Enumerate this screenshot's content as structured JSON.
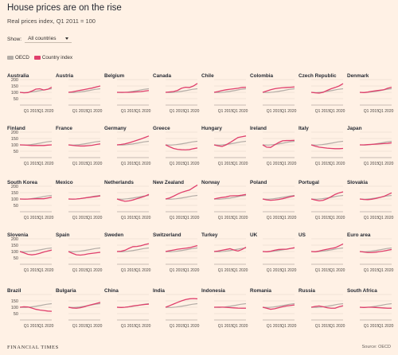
{
  "header": {
    "title": "House prices are on the rise",
    "subtitle": "Real prices index, Q1 2011 = 100"
  },
  "controls": {
    "show_label": "Show:",
    "select_value": "All countries"
  },
  "legend": {
    "oecd_label": "OECD",
    "country_label": "Country index"
  },
  "footer": {
    "brand": "FINANCIAL TIMES",
    "source": "Source: OECD"
  },
  "colors": {
    "background": "#fff1e5",
    "oecd": "#b3aca6",
    "country": "#e03f6c",
    "grid": "#e3d5c8"
  },
  "chart_data": {
    "type": "line",
    "ylim": [
      0,
      200
    ],
    "yticks": [
      50,
      100,
      150,
      200
    ],
    "yticks_row": [
      50,
      100,
      150
    ],
    "xtick_labels": [
      "Q1 2015",
      "Q1 2020"
    ],
    "x_range": [
      "Q1 2011",
      "Q4 2021"
    ],
    "oecd": {
      "name": "OECD",
      "x": [
        "Q1 2011",
        "Q1 2013",
        "Q1 2015",
        "Q1 2017",
        "Q1 2019",
        "Q1 2021",
        "Q4 2021"
      ],
      "values": [
        100,
        98,
        102,
        108,
        115,
        123,
        128
      ]
    },
    "panels": [
      {
        "name": "Australia",
        "values": [
          100,
          96,
          98,
          110,
          125,
          128,
          118,
          124,
          140
        ]
      },
      {
        "name": "Austria",
        "values": [
          100,
          104,
          110,
          116,
          122,
          128,
          134,
          142,
          150
        ]
      },
      {
        "name": "Belgium",
        "values": [
          100,
          100,
          100,
          100,
          102,
          104,
          106,
          110,
          114
        ]
      },
      {
        "name": "Canada",
        "values": [
          100,
          103,
          106,
          115,
          132,
          140,
          138,
          150,
          170
        ]
      },
      {
        "name": "Chile",
        "values": [
          100,
          106,
          114,
          120,
          124,
          128,
          132,
          138,
          140
        ]
      },
      {
        "name": "Colombia",
        "values": [
          100,
          110,
          120,
          128,
          133,
          136,
          138,
          140,
          142
        ]
      },
      {
        "name": "Czech Republic",
        "values": [
          100,
          96,
          94,
          100,
          115,
          128,
          138,
          150,
          168
        ]
      },
      {
        "name": "Denmark",
        "values": [
          100,
          98,
          102,
          108,
          112,
          116,
          120,
          132,
          140
        ]
      },
      {
        "name": "Finland",
        "values": [
          100,
          99,
          97,
          95,
          95,
          95,
          95,
          98,
          100
        ]
      },
      {
        "name": "France",
        "values": [
          100,
          96,
          93,
          91,
          91,
          94,
          97,
          103,
          108
        ]
      },
      {
        "name": "Germany",
        "values": [
          100,
          103,
          108,
          116,
          126,
          136,
          146,
          158,
          170
        ]
      },
      {
        "name": "Greece",
        "values": [
          100,
          85,
          72,
          65,
          62,
          61,
          63,
          70,
          76
        ]
      },
      {
        "name": "Hungary",
        "values": [
          100,
          92,
          88,
          100,
          118,
          138,
          158,
          164,
          170
        ]
      },
      {
        "name": "Ireland",
        "values": [
          100,
          82,
          80,
          100,
          118,
          132,
          134,
          134,
          136
        ]
      },
      {
        "name": "Italy",
        "values": [
          100,
          90,
          82,
          78,
          74,
          72,
          70,
          70,
          72
        ]
      },
      {
        "name": "Japan",
        "values": [
          100,
          100,
          102,
          104,
          106,
          108,
          110,
          112,
          116
        ]
      },
      {
        "name": "South Korea",
        "values": [
          100,
          99,
          99,
          101,
          102,
          102,
          102,
          108,
          114
        ]
      },
      {
        "name": "Mexico",
        "values": [
          100,
          99,
          100,
          103,
          108,
          112,
          116,
          120,
          124
        ]
      },
      {
        "name": "Netherlands",
        "values": [
          100,
          90,
          82,
          85,
          92,
          102,
          112,
          122,
          136
        ]
      },
      {
        "name": "New Zealand",
        "values": [
          100,
          108,
          122,
          138,
          152,
          162,
          170,
          190,
          210
        ]
      },
      {
        "name": "Norway",
        "values": [
          100,
          107,
          112,
          116,
          124,
          126,
          126,
          130,
          136
        ]
      },
      {
        "name": "Poland",
        "values": [
          100,
          93,
          90,
          92,
          96,
          102,
          110,
          118,
          124
        ]
      },
      {
        "name": "Portugal",
        "values": [
          100,
          92,
          86,
          90,
          102,
          118,
          136,
          148,
          156
        ]
      },
      {
        "name": "Slovakia",
        "values": [
          100,
          96,
          95,
          98,
          104,
          112,
          120,
          134,
          148
        ]
      },
      {
        "name": "Slovenia",
        "values": [
          100,
          90,
          78,
          74,
          78,
          86,
          96,
          104,
          112
        ]
      },
      {
        "name": "Spain",
        "values": [
          100,
          86,
          74,
          72,
          76,
          82,
          86,
          90,
          94
        ]
      },
      {
        "name": "Sweden",
        "values": [
          100,
          102,
          110,
          125,
          138,
          140,
          145,
          155,
          162
        ]
      },
      {
        "name": "Switzerland",
        "values": [
          100,
          106,
          112,
          118,
          122,
          126,
          130,
          138,
          146
        ]
      },
      {
        "name": "Turkey",
        "values": [
          100,
          104,
          110,
          116,
          122,
          112,
          104,
          116,
          134
        ]
      },
      {
        "name": "UK",
        "values": [
          100,
          98,
          102,
          110,
          116,
          118,
          118,
          124,
          130
        ]
      },
      {
        "name": "US",
        "values": [
          100,
          98,
          104,
          112,
          118,
          124,
          130,
          144,
          160
        ]
      },
      {
        "name": "Euro area",
        "values": [
          100,
          96,
          92,
          92,
          95,
          99,
          104,
          110,
          116
        ]
      },
      {
        "name": "Brazil",
        "values": [
          100,
          104,
          102,
          94,
          84,
          78,
          74,
          70,
          68
        ]
      },
      {
        "name": "Bulgaria",
        "values": [
          100,
          94,
          92,
          96,
          104,
          114,
          122,
          130,
          138
        ]
      },
      {
        "name": "China",
        "values": [
          100,
          98,
          100,
          104,
          110,
          114,
          118,
          122,
          124
        ]
      },
      {
        "name": "India",
        "values": [
          100,
          112,
          125,
          138,
          150,
          160,
          166,
          168,
          166
        ]
      },
      {
        "name": "Indonesia",
        "values": [
          100,
          101,
          101,
          99,
          97,
          95,
          93,
          92,
          92
        ]
      },
      {
        "name": "Romania",
        "values": [
          100,
          92,
          84,
          88,
          96,
          104,
          110,
          114,
          118
        ]
      },
      {
        "name": "Russia",
        "values": [
          100,
          106,
          110,
          104,
          96,
          92,
          92,
          104,
          112
        ]
      },
      {
        "name": "South Africa",
        "values": [
          100,
          98,
          100,
          100,
          98,
          96,
          94,
          92,
          92
        ]
      }
    ]
  }
}
